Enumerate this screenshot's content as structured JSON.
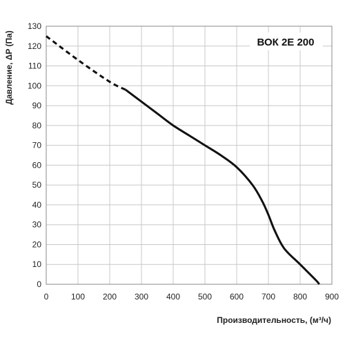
{
  "chart_data": {
    "type": "line",
    "title": "ВОК 2E 200",
    "xlabel": "Производительность, (м³/ч)",
    "ylabel": "Давление, ΔP (Па)",
    "xlim": [
      0,
      900
    ],
    "ylim": [
      0,
      130
    ],
    "x_ticks": [
      "0",
      "100",
      "200",
      "300",
      "400",
      "500",
      "600",
      "700",
      "800",
      "900"
    ],
    "y_ticks": [
      "0",
      "10",
      "20",
      "30",
      "40",
      "50",
      "60",
      "70",
      "80",
      "90",
      "100",
      "110",
      "120",
      "130"
    ],
    "grid": true,
    "series": [
      {
        "style": "dashed",
        "x": [
          0,
          100,
          200,
          250
        ],
        "y": [
          125,
          113,
          102,
          98
        ]
      },
      {
        "style": "solid",
        "x": [
          250,
          300,
          350,
          400,
          450,
          500,
          550,
          600,
          650,
          680,
          700,
          720,
          750,
          800,
          850,
          860
        ],
        "y": [
          98,
          92,
          86,
          80,
          75,
          70,
          65,
          59,
          50,
          42,
          35,
          27,
          18,
          10,
          2,
          0
        ]
      }
    ],
    "colors": {
      "line": "#111111",
      "grid": "#c8c8c8",
      "frame": "#888888"
    }
  }
}
